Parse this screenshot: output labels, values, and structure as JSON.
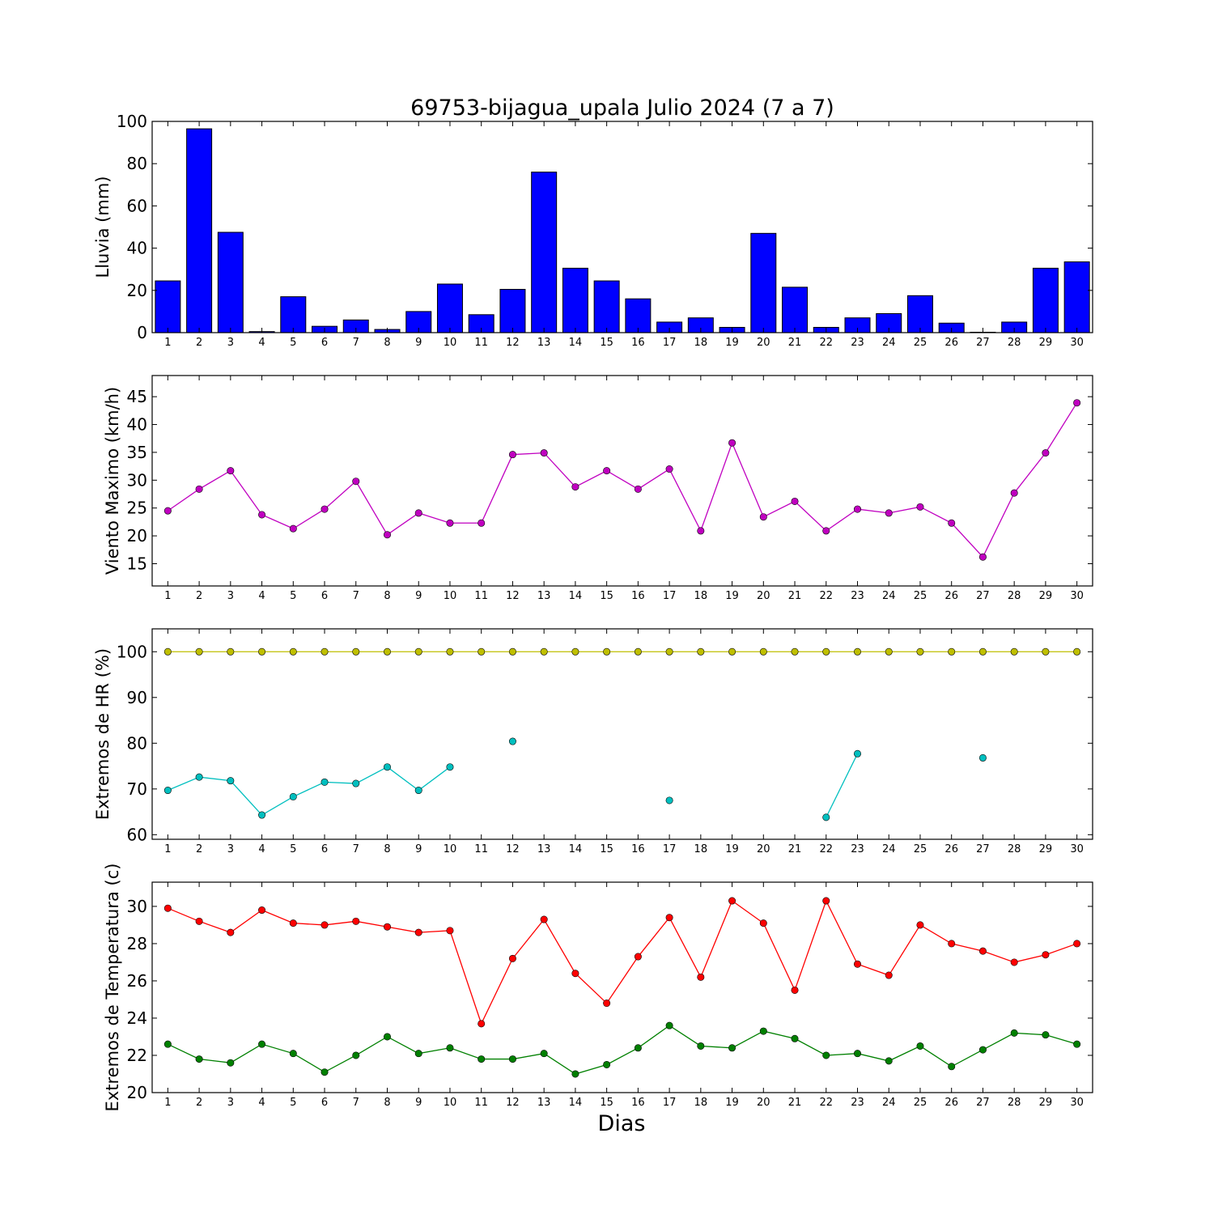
{
  "chart_data": {
    "title": "69753-bijagua_upala Julio 2024  (7 a 7)",
    "xlabel": "Dias",
    "days": [
      1,
      2,
      3,
      4,
      5,
      6,
      7,
      8,
      9,
      10,
      11,
      12,
      13,
      14,
      15,
      16,
      17,
      18,
      19,
      20,
      21,
      22,
      23,
      24,
      25,
      26,
      27,
      28,
      29,
      30
    ],
    "panels": [
      {
        "type": "bar",
        "ylabel": "Lluvia (mm)",
        "ylim": [
          0,
          100
        ],
        "yticks": [
          0,
          20,
          40,
          60,
          80,
          100
        ],
        "series": [
          {
            "color": "#0000ff",
            "values": [
              24.5,
              96.5,
              47.5,
              0.5,
              17,
              3,
              6,
              1.5,
              10,
              23,
              8.5,
              20.5,
              76,
              30.5,
              24.5,
              16,
              5,
              7,
              2.5,
              47,
              21.5,
              2.5,
              7,
              9,
              17.5,
              4.5,
              0.2,
              5,
              30.5,
              33.5
            ]
          }
        ]
      },
      {
        "type": "line",
        "ylabel": "Viento Maximo (km/h)",
        "ylim": [
          11,
          48.8
        ],
        "yticks": [
          15,
          20,
          25,
          30,
          35,
          40,
          45
        ],
        "series": [
          {
            "color": "#c000c0",
            "values": [
              24.5,
              28.4,
              31.7,
              23.8,
              21.3,
              24.8,
              29.8,
              20.2,
              24.1,
              22.3,
              22.3,
              34.6,
              34.9,
              28.8,
              31.7,
              28.4,
              32.0,
              20.9,
              36.7,
              23.4,
              26.2,
              20.9,
              24.8,
              24.1,
              25.2,
              22.3,
              16.2,
              27.7,
              34.9,
              43.9
            ]
          }
        ]
      },
      {
        "type": "line",
        "ylabel": "Extremos de HR (%)",
        "ylim": [
          59,
          105
        ],
        "yticks": [
          60,
          70,
          80,
          90,
          100
        ],
        "series": [
          {
            "color": "#bfbf00",
            "values": [
              100,
              100,
              100,
              100,
              100,
              100,
              100,
              100,
              100,
              100,
              100,
              100,
              100,
              100,
              100,
              100,
              100,
              100,
              100,
              100,
              100,
              100,
              100,
              100,
              100,
              100,
              100,
              100,
              100,
              100
            ]
          },
          {
            "color": "#00bfbf",
            "values": [
              69.7,
              72.6,
              71.8,
              64.3,
              68.3,
              71.5,
              71.2,
              74.8,
              69.7,
              74.8,
              null,
              80.4,
              null,
              null,
              null,
              null,
              67.5,
              null,
              null,
              null,
              null,
              63.8,
              77.7,
              null,
              null,
              null,
              76.8,
              null,
              null,
              null
            ]
          }
        ]
      },
      {
        "type": "line",
        "ylabel": "Extremos de Temperatura (c)",
        "ylim": [
          20,
          31.3
        ],
        "yticks": [
          20,
          22,
          24,
          26,
          28,
          30
        ],
        "series": [
          {
            "color": "#ff0000",
            "values": [
              29.9,
              29.2,
              28.6,
              29.8,
              29.1,
              29.0,
              29.2,
              28.9,
              28.6,
              28.7,
              23.7,
              27.2,
              29.3,
              26.4,
              24.8,
              27.3,
              29.4,
              26.2,
              30.3,
              29.1,
              25.5,
              30.3,
              26.9,
              26.3,
              29.0,
              28.0,
              27.6,
              27.0,
              27.4,
              28.0
            ]
          },
          {
            "color": "#008000",
            "values": [
              22.6,
              21.8,
              21.6,
              22.6,
              22.1,
              21.1,
              22.0,
              23.0,
              22.1,
              22.4,
              21.8,
              21.8,
              22.1,
              21.0,
              21.5,
              22.4,
              23.6,
              22.5,
              22.4,
              23.3,
              22.9,
              22.0,
              22.1,
              21.7,
              22.5,
              21.4,
              22.3,
              23.2,
              23.1,
              22.6
            ]
          }
        ]
      }
    ]
  }
}
